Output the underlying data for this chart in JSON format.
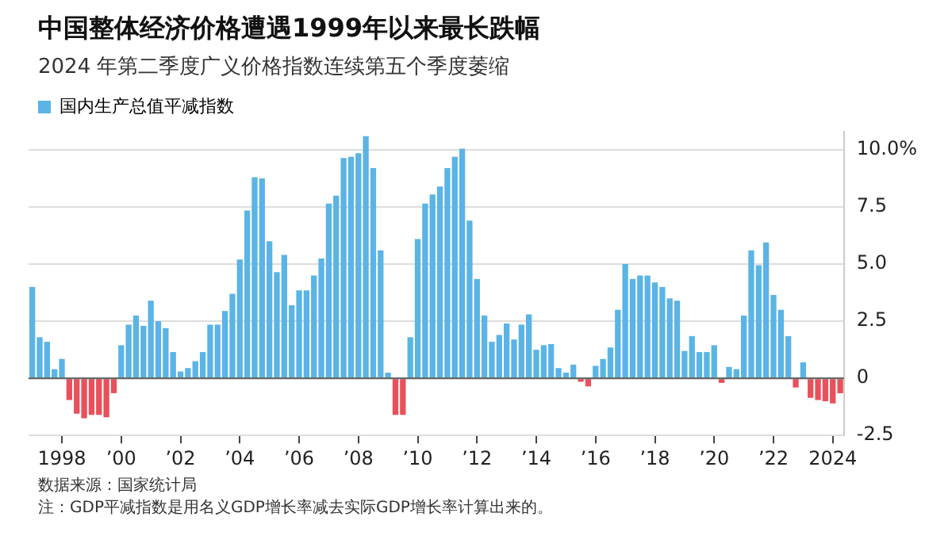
{
  "chart_data": {
    "type": "bar",
    "title": "中国整体经济价格遭遇1999年以来最长跌幅",
    "subtitle": "2024 年第二季度广义价格指数连续第五个季度萎缩",
    "categories": [
      null,
      null,
      null,
      null,
      "1998",
      null,
      null,
      null,
      null,
      null,
      null,
      null,
      "’00",
      null,
      null,
      null,
      null,
      null,
      null,
      null,
      "’02",
      null,
      null,
      null,
      null,
      null,
      null,
      null,
      "’04",
      null,
      null,
      null,
      null,
      null,
      null,
      null,
      "’06",
      null,
      null,
      null,
      null,
      null,
      null,
      null,
      "’08",
      null,
      null,
      null,
      null,
      null,
      null,
      null,
      "’10",
      null,
      null,
      null,
      null,
      null,
      null,
      null,
      "’12",
      null,
      null,
      null,
      null,
      null,
      null,
      null,
      "’14",
      null,
      null,
      null,
      null,
      null,
      null,
      null,
      "’16",
      null,
      null,
      null,
      null,
      null,
      null,
      null,
      "’18",
      null,
      null,
      null,
      null,
      null,
      null,
      null,
      "’20",
      null,
      null,
      null,
      null,
      null,
      null,
      null,
      "’22",
      null,
      null,
      null,
      null,
      null,
      null,
      null,
      "2024",
      null
    ],
    "series": [
      {
        "name": "国内生产总值平减指数",
        "color": "#5ab4e5",
        "values": [
          4.0,
          1.8,
          1.6,
          0.4,
          0.85,
          -0.95,
          -1.55,
          -1.75,
          -1.6,
          -1.6,
          -1.7,
          -0.65,
          1.45,
          2.35,
          2.75,
          2.3,
          3.4,
          2.5,
          2.2,
          1.15,
          0.3,
          0.45,
          0.75,
          1.15,
          2.35,
          2.35,
          2.95,
          3.7,
          5.2,
          7.35,
          8.8,
          8.75,
          6.0,
          4.65,
          5.4,
          3.2,
          3.85,
          3.85,
          4.5,
          5.25,
          7.65,
          8.0,
          9.65,
          9.7,
          9.85,
          10.6,
          9.2,
          5.6,
          0.25,
          -1.6,
          -1.6,
          1.8,
          6.1,
          7.65,
          8.05,
          8.4,
          9.2,
          9.7,
          10.05,
          6.9,
          4.35,
          2.75,
          1.6,
          1.9,
          2.4,
          1.7,
          2.35,
          2.8,
          1.25,
          1.45,
          1.5,
          0.45,
          0.25,
          0.6,
          -0.15,
          -0.35,
          0.55,
          0.85,
          1.35,
          3.0,
          5.0,
          4.35,
          4.5,
          4.5,
          4.2,
          4.0,
          3.5,
          3.4,
          1.2,
          1.85,
          1.15,
          1.15,
          1.45,
          -0.2,
          0.5,
          0.4,
          2.75,
          5.6,
          4.95,
          5.95,
          3.65,
          3.0,
          1.85,
          -0.4,
          0.7,
          -0.85,
          -0.95,
          -1.0,
          -1.1,
          -0.65
        ],
        "colors": [
          "#5ab4e5",
          "#5ab4e5",
          "#5ab4e5",
          "#5ab4e5",
          "#5ab4e5",
          "#e8505b",
          "#e8505b",
          "#e8505b",
          "#e8505b",
          "#e8505b",
          "#e8505b",
          "#e8505b",
          "#5ab4e5",
          "#5ab4e5",
          "#5ab4e5",
          "#5ab4e5",
          "#5ab4e5",
          "#5ab4e5",
          "#5ab4e5",
          "#5ab4e5",
          "#5ab4e5",
          "#5ab4e5",
          "#5ab4e5",
          "#5ab4e5",
          "#5ab4e5",
          "#5ab4e5",
          "#5ab4e5",
          "#5ab4e5",
          "#5ab4e5",
          "#5ab4e5",
          "#5ab4e5",
          "#5ab4e5",
          "#5ab4e5",
          "#5ab4e5",
          "#5ab4e5",
          "#5ab4e5",
          "#5ab4e5",
          "#5ab4e5",
          "#5ab4e5",
          "#5ab4e5",
          "#5ab4e5",
          "#5ab4e5",
          "#5ab4e5",
          "#5ab4e5",
          "#5ab4e5",
          "#5ab4e5",
          "#5ab4e5",
          "#5ab4e5",
          "#5ab4e5",
          "#e8505b",
          "#e8505b",
          "#5ab4e5",
          "#5ab4e5",
          "#5ab4e5",
          "#5ab4e5",
          "#5ab4e5",
          "#5ab4e5",
          "#5ab4e5",
          "#5ab4e5",
          "#5ab4e5",
          "#5ab4e5",
          "#5ab4e5",
          "#5ab4e5",
          "#5ab4e5",
          "#5ab4e5",
          "#5ab4e5",
          "#5ab4e5",
          "#5ab4e5",
          "#5ab4e5",
          "#5ab4e5",
          "#5ab4e5",
          "#5ab4e5",
          "#5ab4e5",
          "#5ab4e5",
          "#e8505b",
          "#e8505b",
          "#5ab4e5",
          "#5ab4e5",
          "#5ab4e5",
          "#5ab4e5",
          "#5ab4e5",
          "#5ab4e5",
          "#5ab4e5",
          "#5ab4e5",
          "#5ab4e5",
          "#5ab4e5",
          "#5ab4e5",
          "#5ab4e5",
          "#5ab4e5",
          "#5ab4e5",
          "#5ab4e5",
          "#5ab4e5",
          "#5ab4e5",
          "#e8505b",
          "#5ab4e5",
          "#5ab4e5",
          "#5ab4e5",
          "#5ab4e5",
          "#5ab4e5",
          "#5ab4e5",
          "#5ab4e5",
          "#5ab4e5",
          "#5ab4e5",
          "#e8505b",
          "#5ab4e5",
          "#e8505b",
          "#e8505b",
          "#e8505b",
          "#e8505b",
          "#e8505b"
        ]
      }
    ],
    "ylim": [
      -2.5,
      10.8
    ],
    "yticks": [
      {
        "value": 10,
        "label": "10.0%"
      },
      {
        "value": 7.5,
        "label": "7.5"
      },
      {
        "value": 5,
        "label": "5.0"
      },
      {
        "value": 2.5,
        "label": "2.5"
      },
      0,
      {
        "value": -2.5,
        "label": "-2.5"
      }
    ],
    "grid": "y",
    "legend": "top left",
    "annotations": [
      "数据来源：国家统计局",
      "注：GDP平减指数是用名义GDP增长率减去实际GDP增长率计算出来的。"
    ]
  }
}
